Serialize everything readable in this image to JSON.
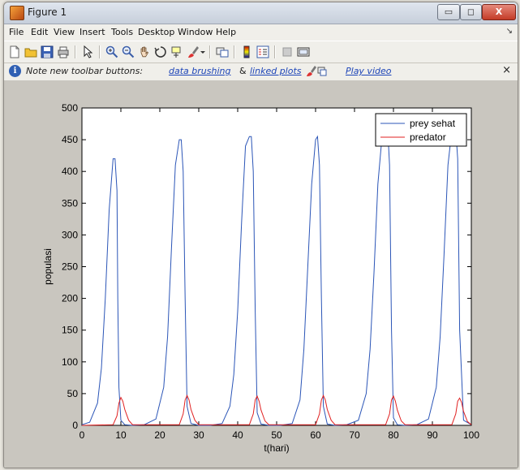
{
  "window": {
    "title": "Figure 1",
    "buttons": {
      "minimize": "▭",
      "maximize": "◻",
      "close": "X"
    }
  },
  "menu": [
    "File",
    "Edit",
    "View",
    "Insert",
    "Tools",
    "Desktop",
    "Window",
    "Help"
  ],
  "toolbar_icons": [
    "new-figure-icon",
    "open-file-icon",
    "save-icon",
    "print-icon",
    "edit-plot-arrow-icon",
    "zoom-in-icon",
    "zoom-out-icon",
    "pan-hand-icon",
    "rotate-3d-icon",
    "data-cursor-icon",
    "brush-icon",
    "brush-dropdown-icon",
    "link-plot-icon",
    "colorbar-icon",
    "legend-icon",
    "hide-plot-tools-icon",
    "show-plot-tools-icon"
  ],
  "infobar": {
    "text": "Note new toolbar buttons:",
    "link1": "data brushing",
    "amp": "&",
    "link2": "linked plots",
    "link3": "Play video",
    "close": "×"
  },
  "chart_data": {
    "type": "line",
    "title": "",
    "xlabel": "t(hari)",
    "ylabel": "populasi",
    "xlim": [
      0,
      100
    ],
    "ylim": [
      0,
      500
    ],
    "xticks": [
      "0",
      "10",
      "20",
      "30",
      "40",
      "50",
      "60",
      "70",
      "80",
      "90",
      "100"
    ],
    "yticks": [
      "0",
      "50",
      "100",
      "150",
      "200",
      "250",
      "300",
      "350",
      "400",
      "450",
      "500"
    ],
    "legend_position": "top-right",
    "series": [
      {
        "name": "prey sehat",
        "color": "#2b55b7",
        "x": [
          0,
          2,
          4,
          5,
          6,
          7,
          8,
          8.5,
          9,
          9.2,
          9.5,
          10,
          11,
          13,
          16,
          19,
          21,
          22,
          23,
          24,
          25,
          25.5,
          26,
          26.5,
          27,
          28,
          30,
          33,
          36,
          38,
          39,
          40,
          41,
          42,
          43,
          43.5,
          44,
          44.5,
          45,
          46,
          48,
          51,
          54,
          56,
          57,
          58,
          59,
          60,
          60.5,
          61,
          61.5,
          62,
          63,
          65,
          68,
          71,
          73,
          74,
          75,
          76,
          77,
          78,
          78.5,
          79,
          79.5,
          80,
          81,
          83,
          86,
          89,
          91,
          92,
          93,
          94,
          95,
          96,
          96.5,
          97,
          98,
          100
        ],
        "y": [
          1,
          5,
          35,
          90,
          200,
          340,
          420,
          420,
          370,
          200,
          60,
          8,
          1,
          0,
          1,
          10,
          60,
          140,
          280,
          410,
          450,
          450,
          400,
          200,
          30,
          3,
          0,
          0,
          3,
          30,
          80,
          180,
          320,
          440,
          455,
          455,
          400,
          180,
          20,
          2,
          0,
          0,
          3,
          40,
          120,
          250,
          380,
          450,
          455,
          410,
          200,
          30,
          2,
          0,
          1,
          8,
          50,
          120,
          240,
          380,
          450,
          470,
          470,
          410,
          150,
          12,
          1,
          0,
          1,
          10,
          60,
          140,
          270,
          410,
          465,
          465,
          420,
          150,
          8,
          1
        ]
      },
      {
        "name": "predator",
        "color": "#e02020",
        "x": [
          0,
          8,
          9,
          9.5,
          10,
          10.5,
          11,
          12,
          13,
          25,
          26,
          26.5,
          27,
          27.5,
          28,
          29,
          30,
          43,
          44,
          44.5,
          45,
          45.5,
          46,
          47,
          48,
          60,
          61,
          61.5,
          62,
          62.5,
          63,
          64,
          65,
          78,
          79,
          79.5,
          80,
          80.5,
          81,
          82,
          83,
          95,
          96,
          96.5,
          97,
          97.5,
          98,
          99,
          100
        ],
        "y": [
          0,
          1,
          15,
          35,
          44,
          38,
          25,
          8,
          1,
          1,
          18,
          40,
          47,
          40,
          25,
          8,
          1,
          1,
          18,
          40,
          46,
          38,
          24,
          7,
          1,
          1,
          18,
          40,
          47,
          40,
          25,
          8,
          1,
          1,
          18,
          40,
          46,
          38,
          24,
          7,
          1,
          1,
          18,
          38,
          43,
          36,
          22,
          6,
          1
        ]
      }
    ]
  }
}
